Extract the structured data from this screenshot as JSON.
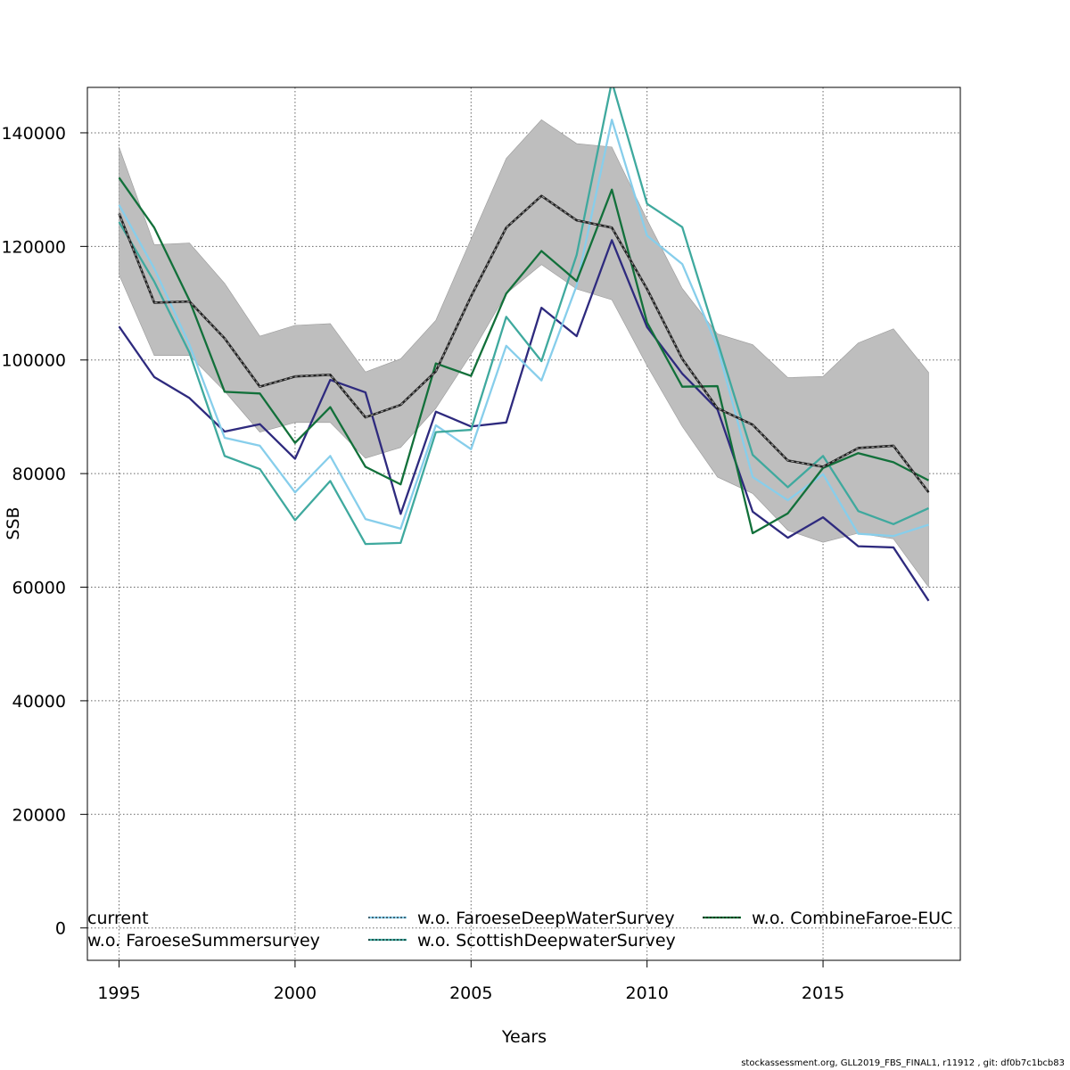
{
  "chart_data": {
    "type": "line",
    "xlabel": "Years",
    "ylabel": "SSB",
    "xlim": [
      1994.1,
      2018.9
    ],
    "ylim": [
      -5700,
      148000
    ],
    "x_ticks": [
      "1995",
      "2000",
      "2005",
      "2010",
      "2015"
    ],
    "y_ticks": [
      "0",
      "20000",
      "40000",
      "60000",
      "80000",
      "100000",
      "120000",
      "140000"
    ],
    "grid": true,
    "legend_position": "bottom",
    "x": [
      1995,
      1996,
      1997,
      1998,
      1999,
      2000,
      2001,
      2002,
      2003,
      2004,
      2005,
      2006,
      2007,
      2008,
      2009,
      2010,
      2011,
      2012,
      2013,
      2014,
      2015,
      2016,
      2017,
      2018
    ],
    "band": {
      "color": "#bebebe",
      "lower": [
        115000,
        100800,
        100800,
        94500,
        87300,
        89000,
        89000,
        82700,
        84600,
        91500,
        101000,
        111700,
        116800,
        112500,
        110600,
        99000,
        88300,
        79400,
        76500,
        70000,
        67900,
        69500,
        68500,
        60000
      ],
      "upper": [
        137500,
        120300,
        120600,
        113500,
        104200,
        106100,
        106400,
        97900,
        100200,
        107000,
        121300,
        135500,
        142300,
        138100,
        137500,
        124700,
        112600,
        104600,
        102700,
        96900,
        97100,
        103000,
        105500,
        97800
      ]
    },
    "series": [
      {
        "name": "current",
        "color": "#222222",
        "dashed": true,
        "values": [
          125800,
          110100,
          110300,
          103800,
          95300,
          97100,
          97400,
          89900,
          92100,
          98000,
          111200,
          123300,
          128900,
          124600,
          123300,
          112500,
          100200,
          91500,
          88600,
          82300,
          81200,
          84500,
          84900,
          76700
        ]
      },
      {
        "name": "w.o. FaroeseSummersurvey",
        "color": "#2e2a7e",
        "dashed": false,
        "values": [
          105900,
          97000,
          93300,
          87400,
          88700,
          82600,
          96500,
          94300,
          72900,
          90900,
          88300,
          89000,
          109200,
          104200,
          121100,
          105800,
          97600,
          91300,
          73300,
          68700,
          72300,
          67200,
          67000,
          57600
        ]
      },
      {
        "name": "w.o. FaroeseDeepWaterSurvey",
        "color": "#87ceeb",
        "dashed": false,
        "values": [
          127300,
          116100,
          102700,
          86300,
          84900,
          76700,
          83100,
          72000,
          70300,
          88500,
          84300,
          102500,
          96400,
          113100,
          142300,
          121900,
          116900,
          102300,
          79400,
          75300,
          79900,
          69400,
          69000,
          71000
        ]
      },
      {
        "name": "w.o. ScottishDeepwaterSurvey",
        "color": "#3fa99e",
        "dashed": false,
        "values": [
          124300,
          113800,
          101300,
          83100,
          80800,
          71800,
          78700,
          67600,
          67800,
          87300,
          87700,
          107600,
          99800,
          118500,
          149000,
          127500,
          123400,
          103300,
          83300,
          77600,
          83100,
          73400,
          71100,
          73900
        ]
      },
      {
        "name": "w.o. CombineFaroe-EUC",
        "color": "#12703a",
        "dashed": false,
        "values": [
          132100,
          123300,
          110500,
          94400,
          94100,
          85400,
          91700,
          81200,
          78100,
          99400,
          97200,
          111700,
          119200,
          113900,
          130000,
          106600,
          95300,
          95400,
          69500,
          73000,
          81000,
          83600,
          82000,
          78800
        ]
      }
    ]
  },
  "footer_text": "stockassessment.org, GLL2019_FBS_FINAL1, r11912 , git: df0b7c1bcb83"
}
